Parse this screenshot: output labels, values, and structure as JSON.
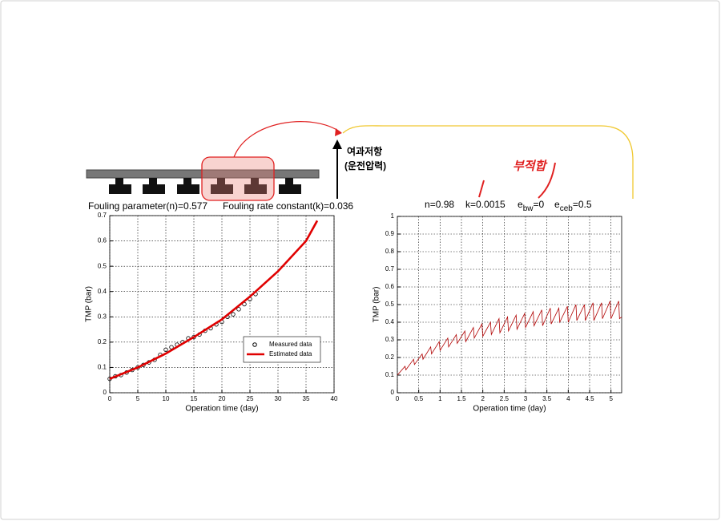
{
  "diagram": {
    "resistance": "여과저항",
    "pressure": "(운전압력)",
    "unsuitable": "부적합"
  },
  "chart_data": [
    {
      "type": "line",
      "annotations": [
        "Fouling parameter(n)=0.577",
        "Fouling rate constant(k)=0.036"
      ],
      "x_label": "Operation time (day)",
      "y_label": "TMP (bar)",
      "xlim": [
        0,
        40
      ],
      "xticks": [
        0,
        5,
        10,
        15,
        20,
        25,
        30,
        35,
        40
      ],
      "ylim": [
        0,
        0.7
      ],
      "yticks": [
        0,
        0.1,
        0.2,
        0.3,
        0.4,
        0.5,
        0.6,
        0.7
      ],
      "grid": true,
      "legend": "lower right",
      "series": [
        {
          "name": "Measured data",
          "color": "#000000",
          "mode": "markers",
          "x": [
            0,
            1,
            2,
            3,
            4,
            5,
            6,
            7,
            8,
            9,
            10,
            11,
            12,
            13,
            14,
            15,
            16,
            17,
            18,
            19,
            20,
            21,
            22,
            23,
            24,
            25,
            26
          ],
          "values": [
            0.055,
            0.065,
            0.07,
            0.08,
            0.09,
            0.1,
            0.11,
            0.12,
            0.13,
            0.15,
            0.17,
            0.18,
            0.19,
            0.2,
            0.215,
            0.22,
            0.23,
            0.245,
            0.255,
            0.27,
            0.28,
            0.3,
            0.31,
            0.33,
            0.35,
            0.37,
            0.39
          ]
        },
        {
          "name": "Estimated data",
          "color": "#e00000",
          "mode": "lines",
          "x": [
            0,
            5,
            10,
            15,
            20,
            25,
            30,
            35,
            37
          ],
          "values": [
            0.055,
            0.1,
            0.155,
            0.22,
            0.29,
            0.38,
            0.48,
            0.6,
            0.68
          ]
        }
      ]
    },
    {
      "type": "line",
      "parameters": [
        {
          "name": "n",
          "text": "=0.98"
        },
        {
          "name": "k",
          "text": "=0.0015"
        },
        {
          "name": "e",
          "sub": "bw",
          "text": "=0"
        },
        {
          "name": "e",
          "sub": "ceb",
          "text": "=0.5"
        }
      ],
      "x_label": "Operation time (day)",
      "y_label": "TMP (bar)",
      "xlim": [
        0,
        5.25
      ],
      "xticks": [
        0,
        0.5,
        1,
        1.5,
        2,
        2.5,
        3,
        3.5,
        4,
        4.5,
        5
      ],
      "ylim": [
        0,
        1
      ],
      "yticks": [
        0,
        0.1,
        0.2,
        0.3,
        0.4,
        0.5,
        0.6,
        0.7,
        0.8,
        0.9,
        1
      ],
      "grid": true,
      "series": [
        {
          "color": "#b00000",
          "mode": "lines",
          "x": [
            0,
            0.18,
            0.2,
            0.38,
            0.4,
            0.58,
            0.6,
            0.78,
            0.8,
            0.98,
            1.0,
            1.18,
            1.2,
            1.38,
            1.4,
            1.58,
            1.6,
            1.78,
            1.8,
            1.98,
            2.0,
            2.18,
            2.2,
            2.38,
            2.4,
            2.58,
            2.6,
            2.78,
            2.8,
            2.98,
            3.0,
            3.18,
            3.2,
            3.38,
            3.4,
            3.58,
            3.6,
            3.78,
            3.8,
            3.98,
            4.0,
            4.18,
            4.2,
            4.38,
            4.4,
            4.58,
            4.6,
            4.78,
            4.8,
            4.98,
            5.0,
            5.18,
            5.2,
            5.25
          ],
          "values": [
            0.1,
            0.15,
            0.13,
            0.19,
            0.16,
            0.22,
            0.19,
            0.26,
            0.22,
            0.29,
            0.24,
            0.31,
            0.26,
            0.33,
            0.28,
            0.35,
            0.29,
            0.37,
            0.31,
            0.39,
            0.32,
            0.4,
            0.33,
            0.42,
            0.34,
            0.43,
            0.35,
            0.44,
            0.36,
            0.45,
            0.37,
            0.46,
            0.38,
            0.47,
            0.38,
            0.48,
            0.39,
            0.48,
            0.4,
            0.49,
            0.4,
            0.5,
            0.41,
            0.5,
            0.41,
            0.51,
            0.41,
            0.51,
            0.42,
            0.52,
            0.42,
            0.52,
            0.42,
            0.43
          ]
        }
      ]
    }
  ]
}
